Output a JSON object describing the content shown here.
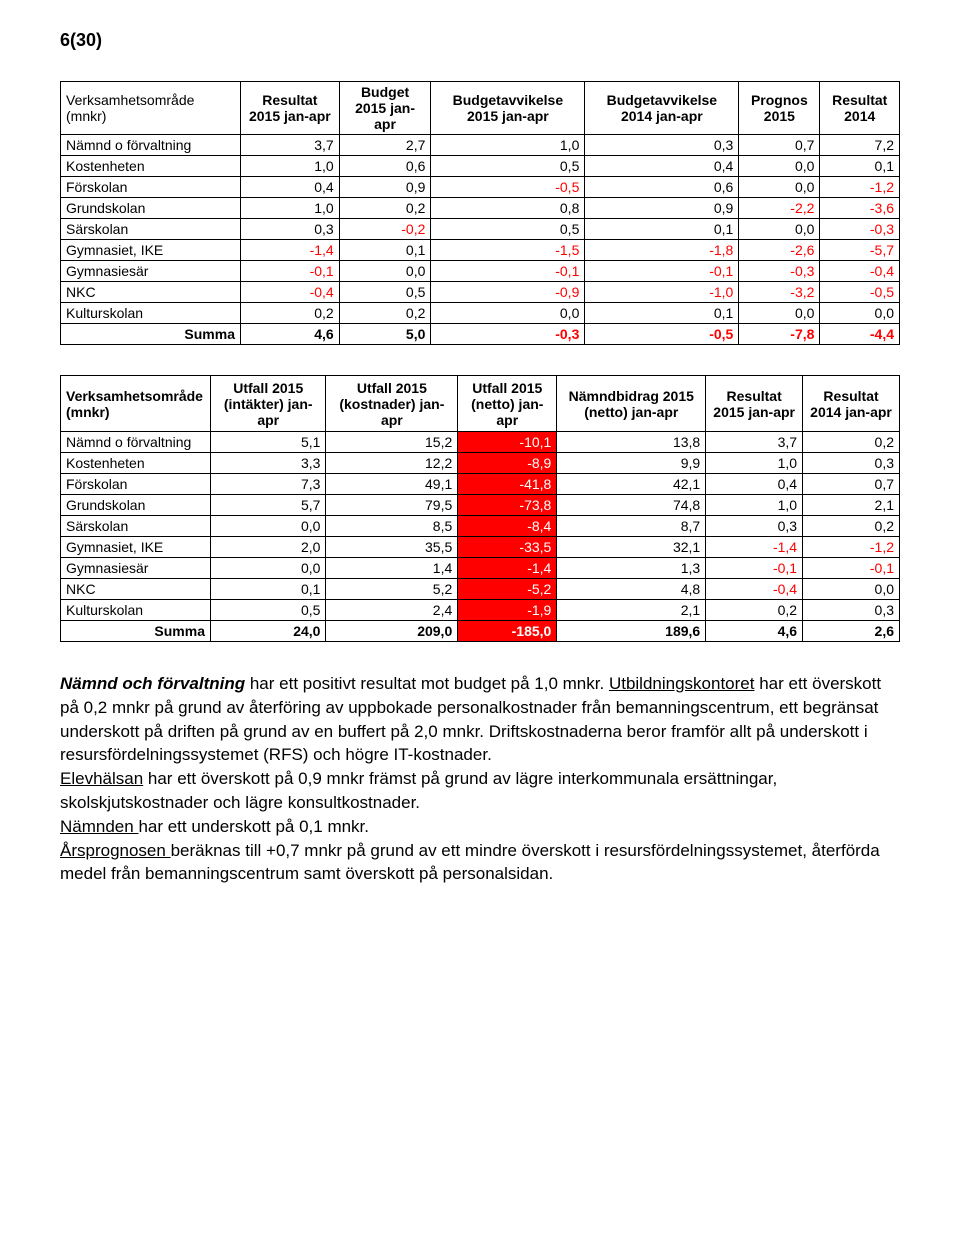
{
  "page_number": "6(30)",
  "table1": {
    "type": "table",
    "border_color": "#000000",
    "background_color": "#ffffff",
    "neg_color": "#ff0000",
    "columns": [
      "Verksamhetsområde (mnkr)",
      "Resultat 2015 jan-apr",
      "Budget 2015 jan-apr",
      "Budgetavvikelse 2015 jan-apr",
      "Budgetavvikelse 2014 jan-apr",
      "Prognos 2015",
      "Resultat 2014"
    ],
    "rows": [
      {
        "label": "Nämnd o förvaltning",
        "v": [
          "3,7",
          "2,7",
          "1,0",
          "0,3",
          "0,7",
          "7,2"
        ]
      },
      {
        "label": "Kostenheten",
        "v": [
          "1,0",
          "0,6",
          "0,5",
          "0,4",
          "0,0",
          "0,1"
        ]
      },
      {
        "label": "Förskolan",
        "v": [
          "0,4",
          "0,9",
          "-0,5",
          "0,6",
          "0,0",
          "-1,2"
        ]
      },
      {
        "label": "Grundskolan",
        "v": [
          "1,0",
          "0,2",
          "0,8",
          "0,9",
          "-2,2",
          "-3,6"
        ]
      },
      {
        "label": "Särskolan",
        "v": [
          "0,3",
          "-0,2",
          "0,5",
          "0,1",
          "0,0",
          "-0,3"
        ]
      },
      {
        "label": "Gymnasiet, IKE",
        "v": [
          "-1,4",
          "0,1",
          "-1,5",
          "-1,8",
          "-2,6",
          "-5,7"
        ]
      },
      {
        "label": "Gymnasiesär",
        "v": [
          "-0,1",
          "0,0",
          "-0,1",
          "-0,1",
          "-0,3",
          "-0,4"
        ]
      },
      {
        "label": "NKC",
        "v": [
          "-0,4",
          "0,5",
          "-0,9",
          "-1,0",
          "-3,2",
          "-0,5"
        ]
      },
      {
        "label": "Kulturskolan",
        "v": [
          "0,2",
          "0,2",
          "0,0",
          "0,1",
          "0,0",
          "0,0"
        ]
      }
    ],
    "sum": {
      "label": "Summa",
      "v": [
        "4,6",
        "5,0",
        "-0,3",
        "-0,5",
        "-7,8",
        "-4,4"
      ]
    }
  },
  "table2": {
    "type": "table",
    "border_color": "#000000",
    "background_color": "#ffffff",
    "neg_color": "#ff0000",
    "highlight_bg": "#ff0000",
    "highlight_text": "#ffffff",
    "columns": [
      "Verksamhetsområde (mnkr)",
      "Utfall 2015 (intäkter) jan-apr",
      "Utfall 2015 (kostnader) jan-apr",
      "Utfall 2015 (netto) jan-apr",
      "Nämndbidrag 2015 (netto) jan-apr",
      "Resultat 2015 jan-apr",
      "Resultat 2014 jan-apr"
    ],
    "rows": [
      {
        "label": "Nämnd o förvaltning",
        "v": [
          "5,1",
          "15,2",
          "-10,1",
          "13,8",
          "3,7",
          "0,2"
        ]
      },
      {
        "label": "Kostenheten",
        "v": [
          "3,3",
          "12,2",
          "-8,9",
          "9,9",
          "1,0",
          "0,3"
        ]
      },
      {
        "label": "Förskolan",
        "v": [
          "7,3",
          "49,1",
          "-41,8",
          "42,1",
          "0,4",
          "0,7"
        ]
      },
      {
        "label": "Grundskolan",
        "v": [
          "5,7",
          "79,5",
          "-73,8",
          "74,8",
          "1,0",
          "2,1"
        ]
      },
      {
        "label": "Särskolan",
        "v": [
          "0,0",
          "8,5",
          "-8,4",
          "8,7",
          "0,3",
          "0,2"
        ]
      },
      {
        "label": "Gymnasiet, IKE",
        "v": [
          "2,0",
          "35,5",
          "-33,5",
          "32,1",
          "-1,4",
          "-1,2"
        ]
      },
      {
        "label": "Gymnasiesär",
        "v": [
          "0,0",
          "1,4",
          "-1,4",
          "1,3",
          "-0,1",
          "-0,1"
        ]
      },
      {
        "label": "NKC",
        "v": [
          "0,1",
          "5,2",
          "-5,2",
          "4,8",
          "-0,4",
          "0,0"
        ]
      },
      {
        "label": "Kulturskolan",
        "v": [
          "0,5",
          "2,4",
          "-1,9",
          "2,1",
          "0,2",
          "0,3"
        ]
      }
    ],
    "sum": {
      "label": "Summa",
      "v": [
        "24,0",
        "209,0",
        "-185,0",
        "189,6",
        "4,6",
        "2,6"
      ]
    }
  },
  "body": {
    "p1_a": "Nämnd och förvaltning",
    "p1_b": " har ett positivt resultat mot budget på 1,0 mnkr. ",
    "p1_c": "Utbildningskontoret",
    "p1_d": " har ett överskott på 0,2 mnkr på grund av återföring av uppbokade personalkostnader från bemanningscentrum, ett begränsat underskott på driften på grund av en buffert på 2,0 mnkr. Driftskostnaderna beror framför allt på underskott i resursfördelningssystemet (RFS) och högre IT-kostnader.",
    "p2_a": "Elevhälsan",
    "p2_b": " har ett överskott på 0,9 mnkr främst på grund av lägre interkommunala ersättningar, skolskjutskostnader och lägre konsultkostnader.",
    "p3_a": "Nämnden ",
    "p3_b": "har ett underskott på 0,1 mnkr.",
    "p4_a": "Årsprognosen ",
    "p4_b": "beräknas till +0,7 mnkr på grund av ett mindre överskott i resursfördelningssystemet, återförda medel från bemanningscentrum samt överskott på personalsidan."
  }
}
